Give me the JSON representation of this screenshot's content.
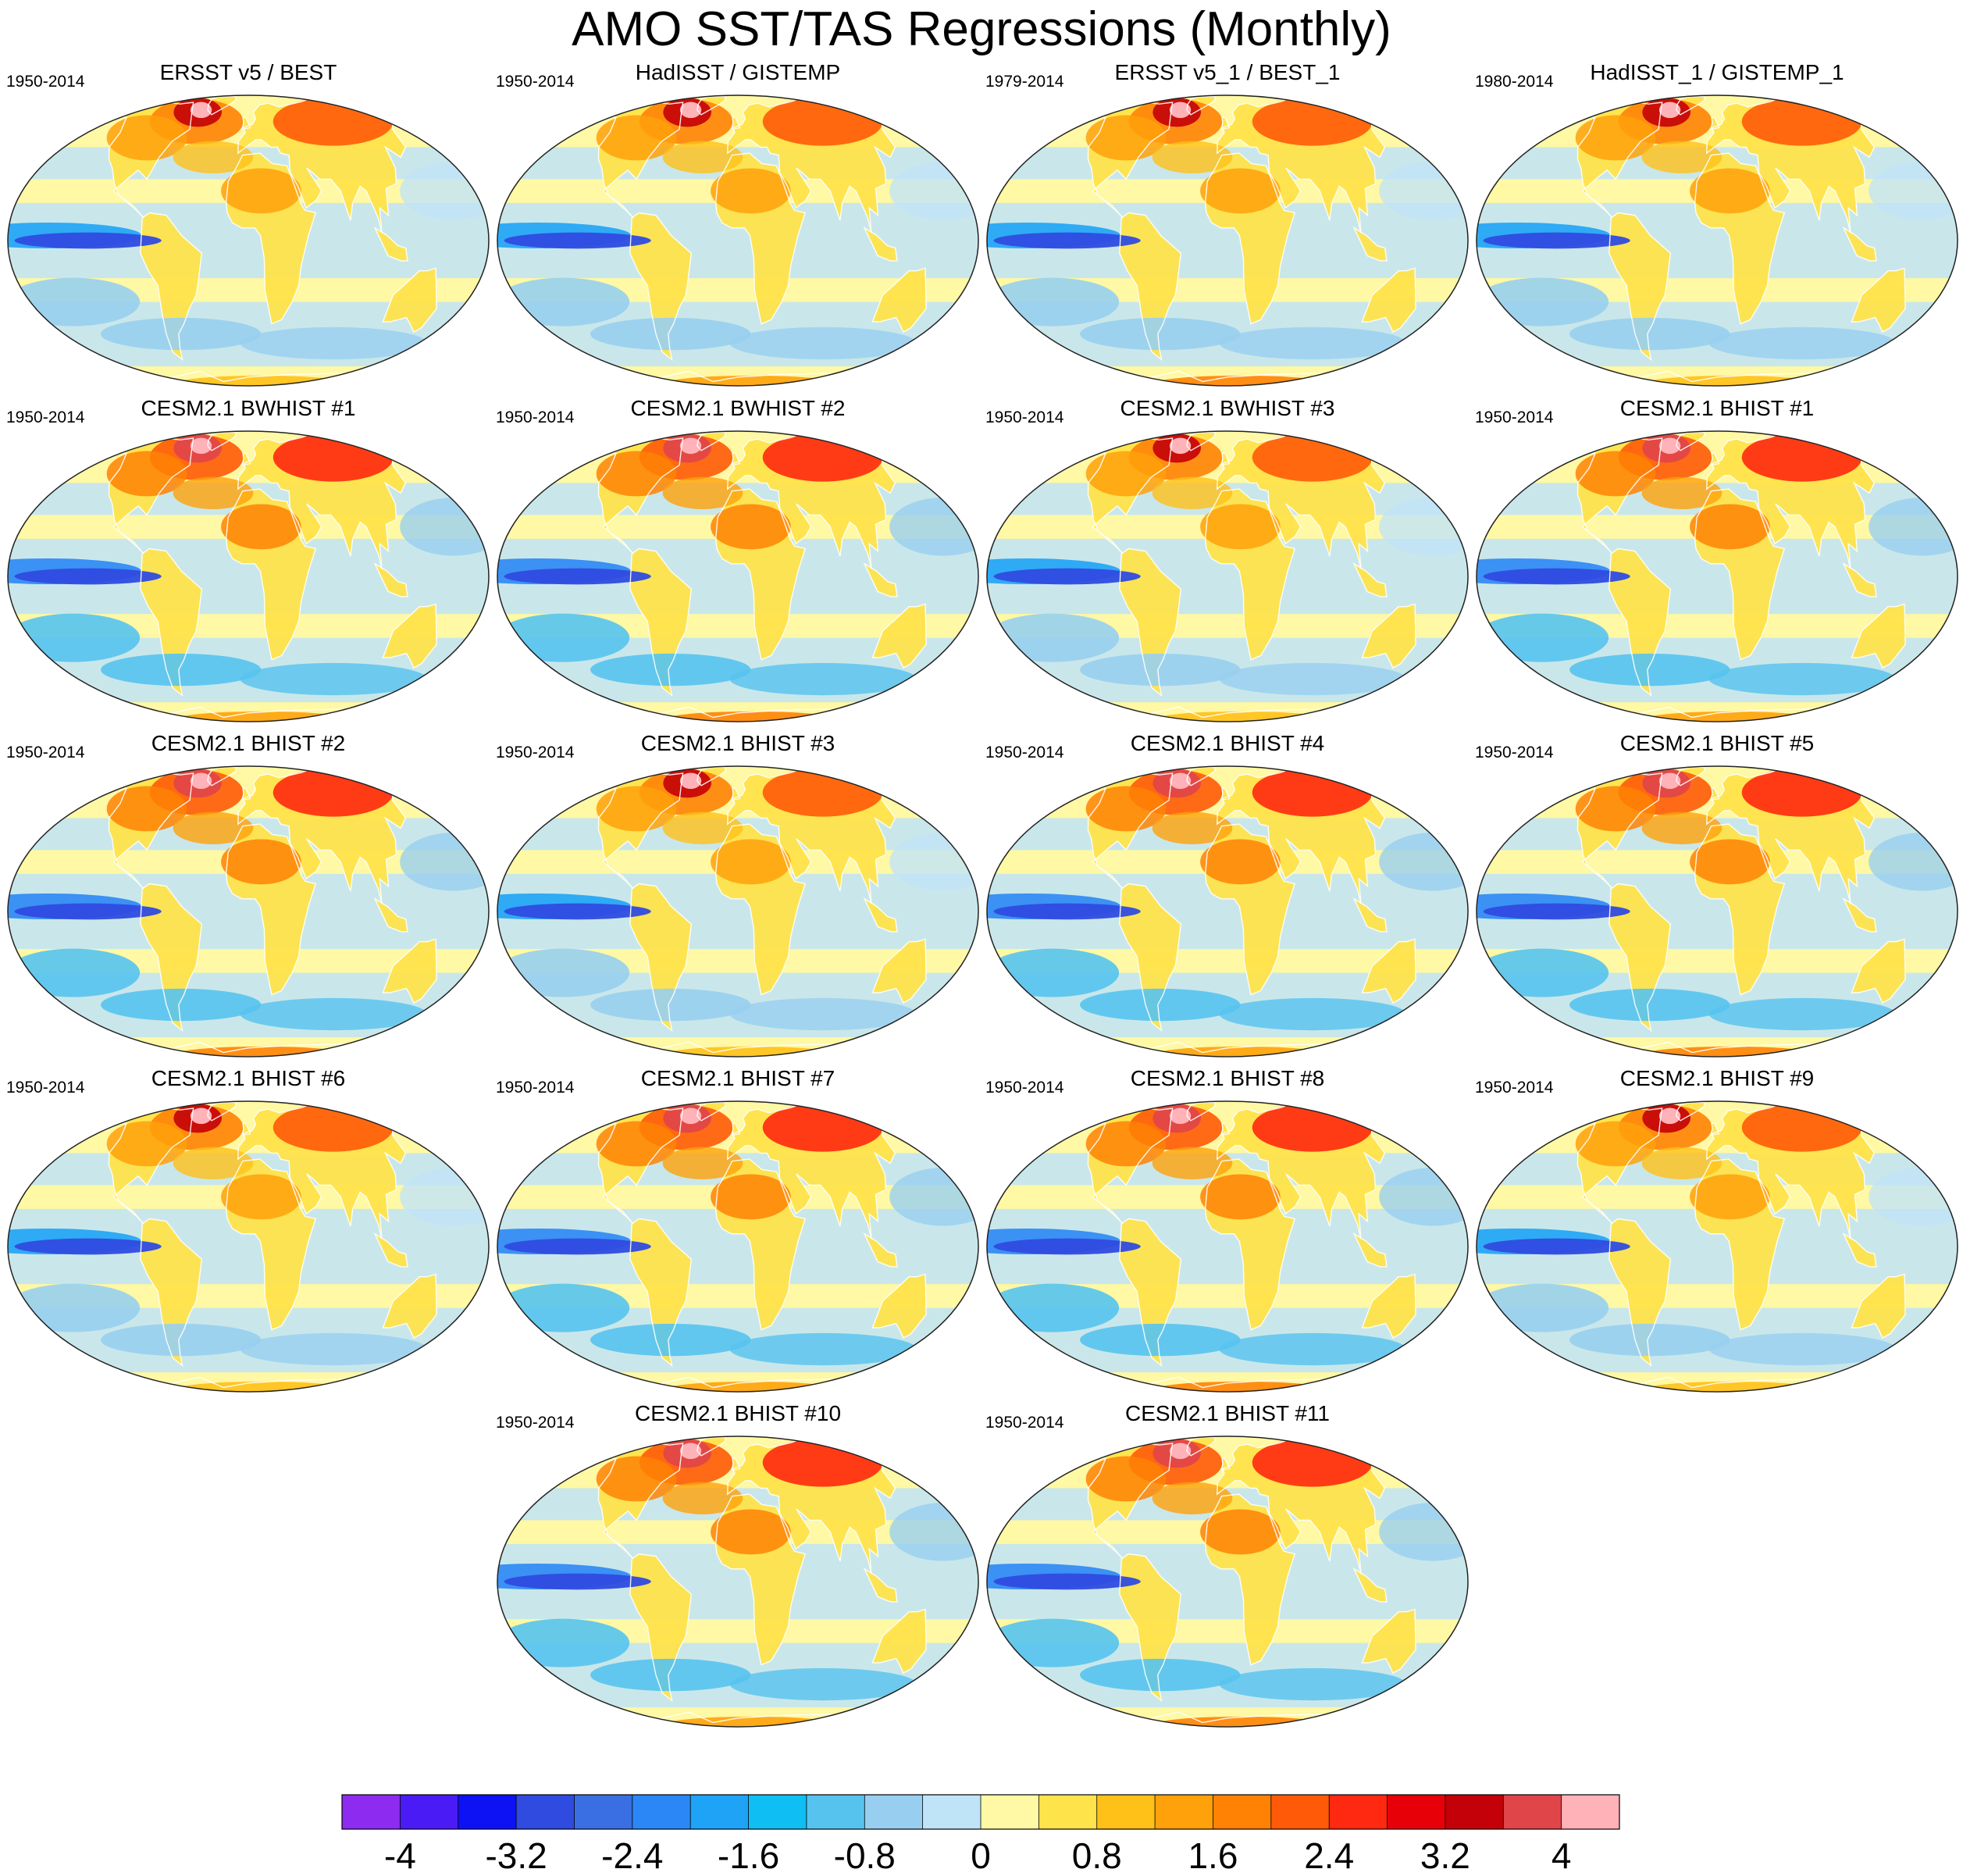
{
  "title": "AMO SST/TAS Regressions (Monthly)",
  "panels": [
    {
      "name": "ERSST v5 / BEST",
      "period": "1950-2014"
    },
    {
      "name": "HadISST / GISTEMP",
      "period": "1950-2014"
    },
    {
      "name": "ERSST v5_1 / BEST_1",
      "period": "1979-2014"
    },
    {
      "name": "HadISST_1 / GISTEMP_1",
      "period": "1980-2014"
    },
    {
      "name": "CESM2.1 BWHIST #1",
      "period": "1950-2014"
    },
    {
      "name": "CESM2.1 BWHIST #2",
      "period": "1950-2014"
    },
    {
      "name": "CESM2.1 BWHIST #3",
      "period": "1950-2014"
    },
    {
      "name": "CESM2.1 BHIST #1",
      "period": "1950-2014"
    },
    {
      "name": "CESM2.1 BHIST #2",
      "period": "1950-2014"
    },
    {
      "name": "CESM2.1 BHIST #3",
      "period": "1950-2014"
    },
    {
      "name": "CESM2.1 BHIST #4",
      "period": "1950-2014"
    },
    {
      "name": "CESM2.1 BHIST #5",
      "period": "1950-2014"
    },
    {
      "name": "CESM2.1 BHIST #6",
      "period": "1950-2014"
    },
    {
      "name": "CESM2.1 BHIST #7",
      "period": "1950-2014"
    },
    {
      "name": "CESM2.1 BHIST #8",
      "period": "1950-2014"
    },
    {
      "name": "CESM2.1 BHIST #9",
      "period": "1950-2014"
    },
    {
      "name": "CESM2.1 BHIST #10",
      "period": "1950-2014"
    },
    {
      "name": "CESM2.1 BHIST #11",
      "period": "1950-2014"
    }
  ],
  "colorbar": {
    "colors": [
      "#8d2cf0",
      "#4a1bf4",
      "#0c12f3",
      "#2f4be0",
      "#3a6fe3",
      "#2b87f5",
      "#1ea3f6",
      "#0fbef3",
      "#56c3ef",
      "#98cff0",
      "#c0e4f7",
      "#fff8a4",
      "#ffe34b",
      "#ffc018",
      "#ffa10a",
      "#ff8205",
      "#ff5a08",
      "#ff2810",
      "#e80008",
      "#c40008",
      "#e0454a",
      "#ffb2b8"
    ],
    "labels": [
      "-4",
      "-3.2",
      "-2.4",
      "-1.6",
      "-0.8",
      "0",
      "0.8",
      "1.6",
      "2.4",
      "3.2",
      "4"
    ]
  }
}
